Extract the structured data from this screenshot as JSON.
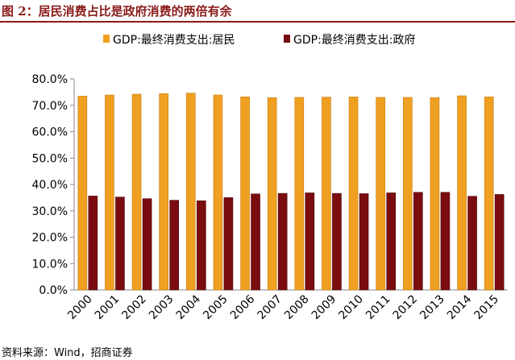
{
  "figure": {
    "title": "图 2：居民消费占比是政府消费的两倍有余",
    "source": "资料来源：Wind，招商证券"
  },
  "chart_data": {
    "type": "bar",
    "title": "",
    "xlabel": "",
    "ylabel": "",
    "categories": [
      "2000",
      "2001",
      "2002",
      "2003",
      "2004",
      "2005",
      "2006",
      "2007",
      "2008",
      "2009",
      "2010",
      "2011",
      "2012",
      "2013",
      "2014",
      "2015"
    ],
    "series": [
      {
        "name": "GDP:最终消费支出:居民",
        "color": "#f0a020",
        "values": [
          73.5,
          73.9,
          74.2,
          74.4,
          74.6,
          73.9,
          73.2,
          72.9,
          73.0,
          73.1,
          73.2,
          73.0,
          73.0,
          72.9,
          73.6,
          73.2
        ]
      },
      {
        "name": "GDP:最终消费支出:政府",
        "color": "#7a0c10",
        "values": [
          35.6,
          35.2,
          34.6,
          34.0,
          33.8,
          35.0,
          36.4,
          36.6,
          36.8,
          36.6,
          36.5,
          36.8,
          37.0,
          37.0,
          35.5,
          36.2
        ]
      }
    ],
    "ylim": [
      0,
      80
    ],
    "yticks": [
      "0.0%",
      "10.0%",
      "20.0%",
      "30.0%",
      "40.0%",
      "50.0%",
      "60.0%",
      "70.0%",
      "80.0%"
    ],
    "grid": false,
    "legend": "top"
  }
}
